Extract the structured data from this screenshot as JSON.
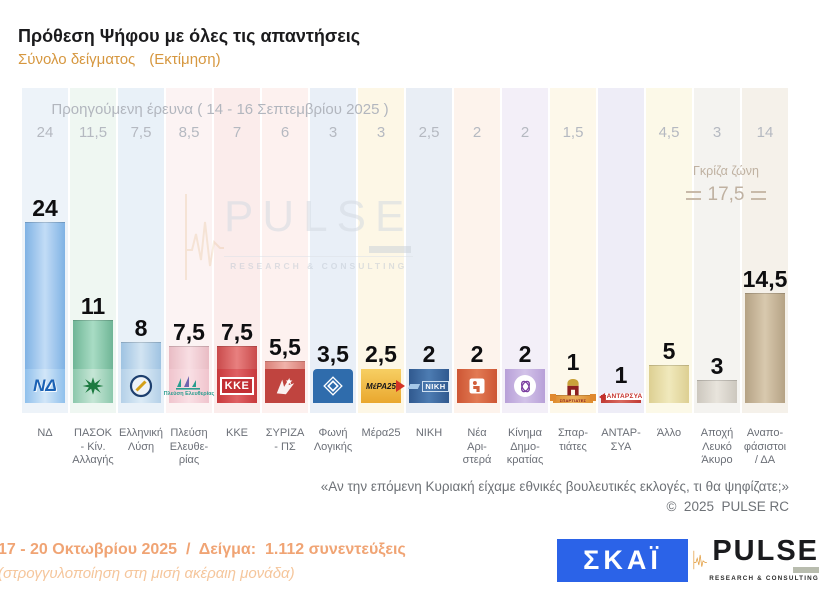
{
  "header": {
    "title": "Πρόθεση Ψήφου με όλες τις απαντήσεις",
    "sample": "Σύνολο δείγματος",
    "estimate": "(Εκτίμηση)"
  },
  "chart_data": {
    "type": "bar",
    "title": "Πρόθεση Ψήφου με όλες τις απαντήσεις",
    "subtitle": "Σύνολο δείγματος (Εκτίμηση)",
    "previous_label": "Προηγούμενη έρευνα ( 14 - 16 Σεπτεμβρίου 2025 )",
    "categories": [
      "ΝΔ",
      "ΠΑΣΟΚ - Κίν. Αλλαγής",
      "Ελληνική Λύση",
      "Πλεύση Ελευθερίας",
      "ΚΚΕ",
      "ΣΥΡΙΖΑ - ΠΣ",
      "Φωνή Λογικής",
      "Μέρα25",
      "ΝΙΚΗ",
      "Νέα Αριστερά",
      "Κίνημα Δημοκρατίας",
      "Σπαρτιάτες",
      "ΑΝΤΑΡΣΥΑ",
      "Άλλο",
      "Αποχή Λευκό Άκυρο",
      "Αναποφάσιστοι / ΔΑ"
    ],
    "series": [
      {
        "name": "Προηγούμενη έρευνα ( 14 - 16 Σεπτεμβρίου 2025 )",
        "values": [
          24,
          11.5,
          7.5,
          8.5,
          7,
          6,
          3,
          3,
          2.5,
          2,
          2,
          1.5,
          null,
          4.5,
          3,
          14
        ]
      },
      {
        "name": "Εκτίμηση 17 - 20 Οκτωβρίου 2025",
        "values": [
          24,
          11,
          8,
          7.5,
          7.5,
          5.5,
          3.5,
          2.5,
          2,
          2,
          2,
          1,
          1,
          5,
          3,
          14.5
        ]
      }
    ],
    "grey_zone": {
      "label": "Γκρίζα ζώνη",
      "value": "17,5"
    },
    "ylim": [
      0,
      26
    ],
    "legend_position": "none",
    "grid": false,
    "parties": [
      {
        "id": "nd",
        "label": "ΝΔ",
        "prev": "24",
        "value": "24",
        "num": 24,
        "strip": "#edf3f9",
        "bar": [
          "#7fb2e4",
          "#c2dcf6"
        ],
        "logo": "nd",
        "logo_text": "ΝΔ"
      },
      {
        "id": "pasok",
        "label": "ΠΑΣΟΚ\n- Κίν.\nΑλλαγής",
        "prev": "11,5",
        "value": "11",
        "num": 11,
        "strip": "#eff7f2",
        "bar": [
          "#6fb596",
          "#a8dcc4"
        ],
        "logo": "pasok",
        "logo_text": ""
      },
      {
        "id": "elliniki-lysi",
        "label": "Ελληνική\nΛύση",
        "prev": "7,5",
        "value": "8",
        "num": 8,
        "strip": "#e9f1f8",
        "bar": [
          "#9fc3e2",
          "#d2e4f2"
        ],
        "logo": "el",
        "logo_text": ""
      },
      {
        "id": "plefsi-eleftherias",
        "label": "Πλεύση\nΕλευθε-\nρίας",
        "prev": "8,5",
        "value": "7,5",
        "num": 7.5,
        "strip": "#fcf3f3",
        "bar": [
          "#e9bcc4",
          "#f8dee3"
        ],
        "logo": "plefsi",
        "logo_text": "Πλεύση Ελευθερίας"
      },
      {
        "id": "kke",
        "label": "ΚΚΕ",
        "prev": "7",
        "value": "7,5",
        "num": 7.5,
        "strip": "#fbeceb",
        "bar": [
          "#c94a4b",
          "#e8807f"
        ],
        "logo": "kke",
        "logo_text": "ΚΚΕ"
      },
      {
        "id": "syriza-ps",
        "label": "ΣΥΡΙΖΑ\n- ΠΣ",
        "prev": "6",
        "value": "5,5",
        "num": 5.5,
        "strip": "#fdf1ef",
        "bar": [
          "#d98078",
          "#f0b2a9"
        ],
        "logo": "syriza",
        "logo_text": ""
      },
      {
        "id": "foni-logikis",
        "label": "Φωνή\nΛογικής",
        "prev": "3",
        "value": "3,5",
        "num": 3.5,
        "strip": "#e9eff7",
        "bar": [
          "#2f6cac",
          "#4d86c0"
        ],
        "logo": "foni",
        "logo_text": ""
      },
      {
        "id": "mera25",
        "label": "Μέρα25",
        "prev": "3",
        "value": "2,5",
        "num": 2.5,
        "strip": "#fdf7e6",
        "bar": [
          "#e8ab32",
          "#f4c95e"
        ],
        "logo": "mera25",
        "logo_text": "ΜέΡΑ25"
      },
      {
        "id": "niki",
        "label": "ΝΙΚΗ",
        "prev": "2,5",
        "value": "2",
        "num": 2,
        "strip": "#e9eef5",
        "bar": [
          "#34609c",
          "#5d86b8"
        ],
        "logo": "niki",
        "logo_text": "ΝΙΚΗ"
      },
      {
        "id": "nea-aristera",
        "label": "Νέα\nΑρι-\nστερά",
        "prev": "2",
        "value": "2",
        "num": 2,
        "strip": "#fdf3ec",
        "bar": [
          "#cd5a38",
          "#e08560"
        ],
        "logo": "nea",
        "logo_text": ""
      },
      {
        "id": "kinima-dimokratias",
        "label": "Κίνημα\nΔημο-\nκρατίας",
        "prev": "2",
        "value": "2",
        "num": 2,
        "strip": "#f3eff8",
        "bar": [
          "#b29ad2",
          "#cfc0e6"
        ],
        "logo": "kd",
        "logo_text": ""
      },
      {
        "id": "spartiates",
        "label": "Σπαρ-\nτιάτες",
        "prev": "1,5",
        "value": "1",
        "num": 1,
        "strip": "#fdf8ea",
        "bar": [
          "#de8c2e",
          "#eab15e"
        ],
        "logo": "spartiates",
        "logo_text": "ΣΠΑΡΤΙΑΤΕΣ"
      },
      {
        "id": "antarsya",
        "label": "ΑΝΤΑΡ-\nΣΥΑ",
        "prev": "",
        "value": "1",
        "num": 1,
        "strip": "#eeedf7",
        "bar": [
          "#c03a34",
          "#d96a60"
        ],
        "logo": "antarsya",
        "logo_text": "ΑΝΤΑΡΣΥΑ"
      },
      {
        "id": "allo",
        "label": "Άλλο",
        "prev": "4,5",
        "value": "5",
        "num": 5,
        "strip": "#fcf9e8",
        "bar": [
          "#ddcf92",
          "#f0e9bc"
        ],
        "logo": "none",
        "logo_text": ""
      },
      {
        "id": "apochi-lefko-akyro",
        "label": "Αποχή\nΛευκό\nΆκυρο",
        "prev": "3",
        "value": "3",
        "num": 3,
        "strip": "#f4f3f0",
        "bar": [
          "#ccc7be",
          "#e8e4dc"
        ],
        "logo": "none",
        "logo_text": ""
      },
      {
        "id": "anapofasistoi-da",
        "label": "Αναπο-\nφάσιστοι\n/ ΔΑ",
        "prev": "14",
        "value": "14,5",
        "num": 14.5,
        "strip": "#f5f1ea",
        "bar": [
          "#b5a284",
          "#d8c9ae"
        ],
        "logo": "none",
        "logo_text": ""
      }
    ]
  },
  "annotations": {
    "question": "«Αν την επόμενη Κυριακή είχαμε εθνικές βουλευτικές εκλογές, τι θα ψηφίζατε;»",
    "copyright": "©  2025  PULSE RC"
  },
  "footer": {
    "line1": "17 - 20 Οκτωβρίου 2025  /  Δείγμα:  1.112 συνεντεύξεις",
    "line2": "(στρογγυλοποίηση στη μισή ακέραιη μονάδα)"
  },
  "logos": {
    "skai": "ΣΚΑΪ",
    "pulse": "PULSE",
    "pulse_sub": "RESEARCH & CONSULTING"
  },
  "watermark": {
    "text": "PULSE",
    "sub": "RESEARCH & CONSULTING"
  },
  "colors": {
    "subtitle_orange": "#d6973f",
    "footer_orange": "#f0a474",
    "grey_text": "#b2b6be",
    "grey_zone_text": "#bfb1a1",
    "skai_blue": "#2b63e8",
    "pulse_orange": "#e0952f"
  }
}
